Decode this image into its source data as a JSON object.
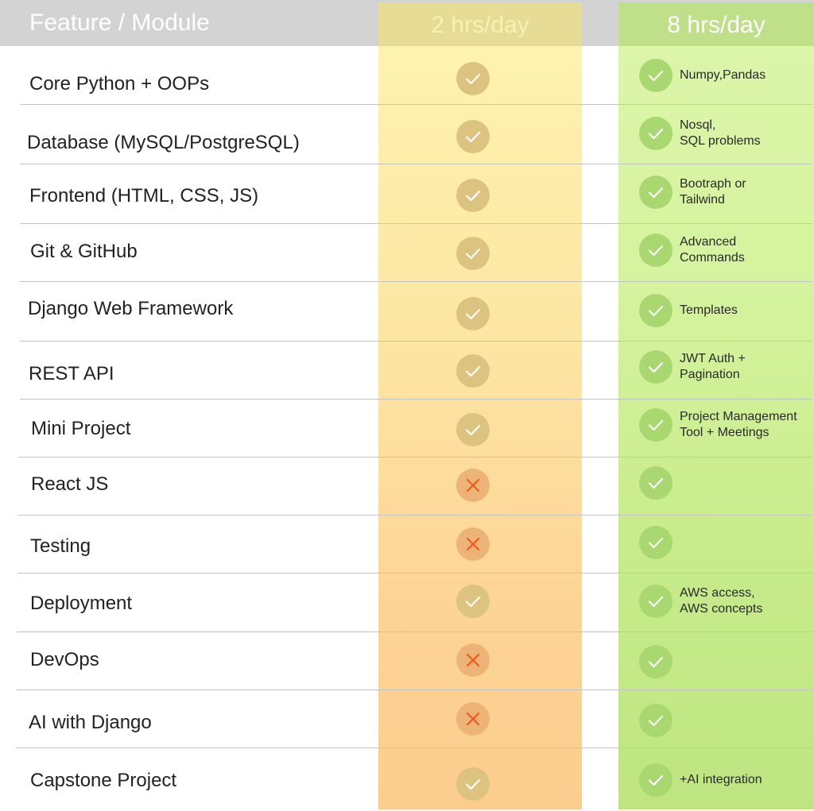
{
  "header": {
    "feature_label": "Feature / Module",
    "plan_2": "2 hrs/day",
    "plan_8": "8 hrs/day"
  },
  "colors": {
    "plan_2_column": "#fde6a4",
    "plan_8_column": "#d5f39e",
    "check_mark": "#ffffff",
    "cross_mark": "#f05a1a"
  },
  "rows": [
    {
      "feature": "Core Python + OOPs",
      "plan_2": "check",
      "plan_8": "check",
      "note_lines": [
        "Numpy,Pandas"
      ]
    },
    {
      "feature": "Database (MySQL/PostgreSQL)",
      "plan_2": "check",
      "plan_8": "check",
      "note_lines": [
        "Nosql,",
        "SQL problems"
      ]
    },
    {
      "feature": "Frontend (HTML, CSS, JS)",
      "plan_2": "check",
      "plan_8": "check",
      "note_lines": [
        "Bootraph or",
        "Tailwind"
      ]
    },
    {
      "feature": "Git & GitHub",
      "plan_2": "check",
      "plan_8": "check",
      "note_lines": [
        "Advanced",
        "Commands"
      ]
    },
    {
      "feature": "Django Web Framework",
      "plan_2": "check",
      "plan_8": "check",
      "note_lines": [
        "Templates"
      ]
    },
    {
      "feature": "REST API",
      "plan_2": "check",
      "plan_8": "check",
      "note_lines": [
        "JWT Auth +",
        "Pagination"
      ]
    },
    {
      "feature": "Mini Project",
      "plan_2": "check",
      "plan_8": "check",
      "note_lines": [
        "Project Management",
        "Tool + Meetings"
      ]
    },
    {
      "feature": "React JS",
      "plan_2": "cross",
      "plan_8": "check",
      "note_lines": []
    },
    {
      "feature": "Testing",
      "plan_2": "cross",
      "plan_8": "check",
      "note_lines": []
    },
    {
      "feature": "Deployment",
      "plan_2": "check",
      "plan_8": "check",
      "note_lines": [
        "AWS access,",
        "AWS concepts"
      ]
    },
    {
      "feature": "DevOps",
      "plan_2": "cross",
      "plan_8": "check",
      "note_lines": []
    },
    {
      "feature": "AI with Django",
      "plan_2": "cross",
      "plan_8": "check",
      "note_lines": []
    },
    {
      "feature": "Capstone Project",
      "plan_2": "check",
      "plan_8": "check",
      "note_lines": [
        "+AI integration"
      ]
    }
  ]
}
